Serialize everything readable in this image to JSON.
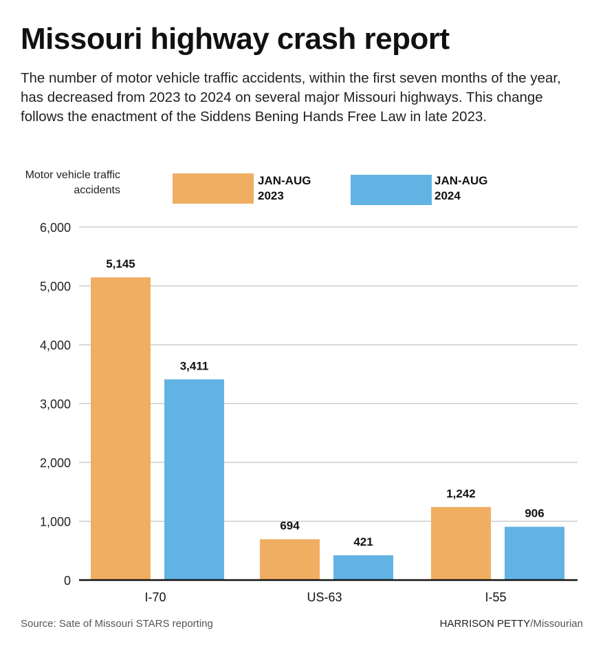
{
  "title": "Missouri highway crash report",
  "subtitle": "The number of motor vehicle traffic accidents, within the first seven months of the year, has decreased from 2023 to 2024 on several major Missouri highways. This change follows the enactment of the Siddens Bening Hands Free Law in late 2023.",
  "source": "Source: Sate of Missouri STARS reporting",
  "credit_name": "HARRISON PETTY",
  "credit_org": "/Missourian",
  "chart_data": {
    "type": "bar",
    "ylabel": "Motor vehicle traffic accidents",
    "categories": [
      "I-70",
      "US-63",
      "I-55"
    ],
    "series": [
      {
        "name": "JAN-AUG 2023",
        "values": [
          5145,
          694,
          1242
        ],
        "color": "#F0AE62",
        "labels": [
          "5,145",
          "694",
          "1,242"
        ]
      },
      {
        "name": "JAN-AUG 2024",
        "values": [
          3411,
          421,
          906
        ],
        "color": "#62B3E3",
        "labels": [
          "3,411",
          "421",
          "906"
        ]
      }
    ],
    "ylim": [
      0,
      6000
    ],
    "yticks": [
      0,
      1000,
      2000,
      3000,
      4000,
      5000,
      6000
    ],
    "ytick_labels": [
      "0",
      "1,000",
      "2,000",
      "3,000",
      "4,000",
      "5,000",
      "6,000"
    ],
    "grid": true,
    "legend": "top"
  }
}
